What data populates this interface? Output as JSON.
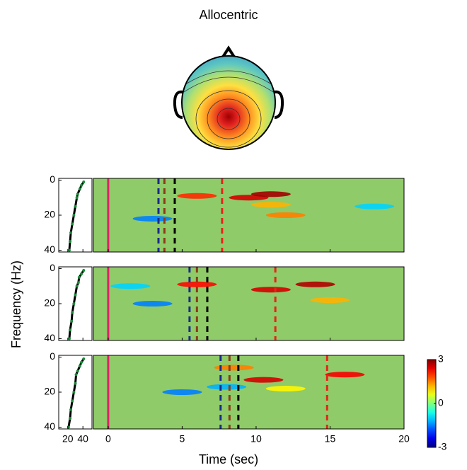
{
  "chart_data": {
    "type": "heatmap",
    "title": "Allocentric",
    "x_label": "Time (sec)",
    "y_label": "Frequency (Hz)",
    "xlim": [
      -1,
      20
    ],
    "xticks": [
      0,
      5,
      10,
      15,
      20
    ],
    "ylim": [
      -1,
      41
    ],
    "yticks": [
      0,
      20,
      40
    ],
    "spectrum_xlim": [
      8,
      52
    ],
    "spectrum_xticks": [
      20,
      40
    ],
    "background": "#8fcb68",
    "clim": [
      -3,
      3
    ],
    "cticks": [
      -3,
      0,
      3
    ],
    "panels": [
      {
        "events": [
          {
            "t": 0,
            "color": "#e0206a",
            "dashed": false
          },
          {
            "t": 3.4,
            "color": "#1a2a8c",
            "dashed": true
          },
          {
            "t": 3.8,
            "color": "#8b3a1a",
            "dashed": true
          },
          {
            "t": 4.5,
            "color": "#000000",
            "dashed": true
          },
          {
            "t": 7.7,
            "color": "#e8231a",
            "dashed": true
          }
        ],
        "spectrum": {
          "freqs": [
            1,
            3,
            5,
            8,
            10,
            15,
            20,
            25,
            30,
            35,
            40
          ],
          "values": [
            41,
            38,
            36,
            33,
            32,
            30,
            28,
            26,
            24,
            23,
            22
          ]
        },
        "hotspots": [
          {
            "t": 9.5,
            "f": 10,
            "value": 2.5
          },
          {
            "t": 11,
            "f": 8,
            "value": 2.8
          },
          {
            "t": 6,
            "f": 9,
            "value": 2
          },
          {
            "t": 12,
            "f": 20,
            "value": 1.5
          },
          {
            "t": 3,
            "f": 22,
            "value": -1.5
          },
          {
            "t": 18,
            "f": 15,
            "value": -1
          },
          {
            "t": 11,
            "f": 14,
            "value": 1.2
          }
        ]
      },
      {
        "events": [
          {
            "t": 0,
            "color": "#e0206a",
            "dashed": false
          },
          {
            "t": 5.5,
            "color": "#1a2a8c",
            "dashed": true
          },
          {
            "t": 6.0,
            "color": "#8b3a1a",
            "dashed": true
          },
          {
            "t": 6.7,
            "color": "#000000",
            "dashed": true
          },
          {
            "t": 11.3,
            "color": "#e8231a",
            "dashed": true
          }
        ],
        "spectrum": {
          "freqs": [
            1,
            3,
            5,
            8,
            10,
            15,
            20,
            25,
            30,
            35,
            40
          ],
          "values": [
            41,
            38,
            35,
            34,
            32,
            30,
            28,
            26,
            25,
            23,
            22
          ]
        },
        "hotspots": [
          {
            "t": 11,
            "f": 12,
            "value": 2.5
          },
          {
            "t": 14,
            "f": 9,
            "value": 2.7
          },
          {
            "t": 6,
            "f": 9,
            "value": 2.2
          },
          {
            "t": 3,
            "f": 20,
            "value": -1.5
          },
          {
            "t": 1.5,
            "f": 10,
            "value": -1
          },
          {
            "t": 15,
            "f": 18,
            "value": 1.2
          }
        ]
      },
      {
        "events": [
          {
            "t": 0,
            "color": "#e0206a",
            "dashed": false
          },
          {
            "t": 7.6,
            "color": "#1a2a8c",
            "dashed": true
          },
          {
            "t": 8.2,
            "color": "#8b3a1a",
            "dashed": true
          },
          {
            "t": 8.8,
            "color": "#000000",
            "dashed": true
          },
          {
            "t": 14.8,
            "color": "#e8231a",
            "dashed": true
          }
        ],
        "spectrum": {
          "freqs": [
            1,
            3,
            5,
            8,
            10,
            15,
            20,
            25,
            30,
            35,
            40
          ],
          "values": [
            41,
            38,
            36,
            33,
            31,
            30,
            28,
            26,
            24,
            23,
            21
          ]
        },
        "hotspots": [
          {
            "t": 10.5,
            "f": 13,
            "value": 2.5
          },
          {
            "t": 16,
            "f": 10,
            "value": 2.3
          },
          {
            "t": 8.5,
            "f": 6,
            "value": 1.5
          },
          {
            "t": 5,
            "f": 20,
            "value": -1.5
          },
          {
            "t": 8,
            "f": 17,
            "value": -1.2
          },
          {
            "t": 12,
            "f": 18,
            "value": 0.8
          }
        ]
      }
    ]
  }
}
